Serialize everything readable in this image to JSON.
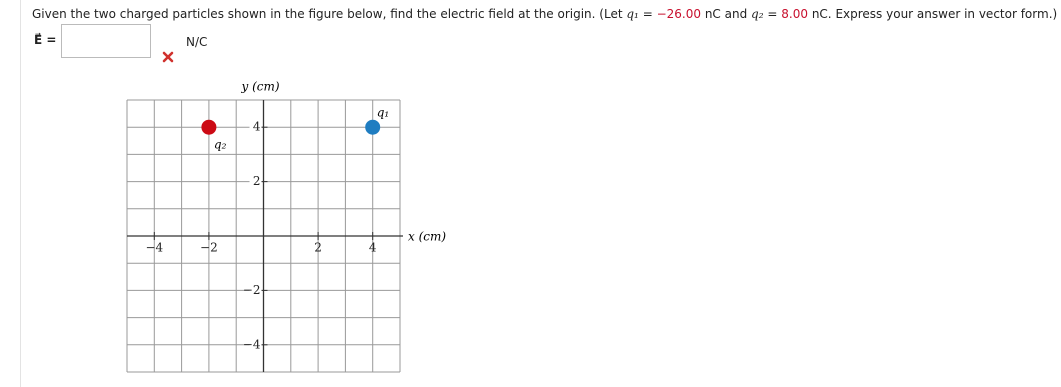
{
  "question": {
    "intro": "Given the two charged particles shown in the figure below, find the electric field at the origin. (Let",
    "q1_symbol": "q₁",
    "equals_1": "=",
    "q1_value": "−26.00",
    "q1_unit": "nC",
    "joiner": "and",
    "q2_symbol": "q₂",
    "equals_2": "=",
    "q2_value": "8.00",
    "q2_unit": "nC.",
    "instruction": "Express your answer in vector form.)"
  },
  "answer": {
    "label": "E⃗ =",
    "unit": "N/C"
  },
  "figure": {
    "x_label": "x (cm)",
    "y_label": "y (cm)",
    "xlim": [
      -5,
      5
    ],
    "ylim": [
      -5,
      5
    ],
    "xticks": [
      {
        "value": -4,
        "label": "−4"
      },
      {
        "value": -2,
        "label": "−2"
      },
      2,
      4
    ],
    "yticks": [
      4,
      2,
      {
        "value": -2,
        "label": "−2"
      },
      {
        "value": -4,
        "label": "−4"
      }
    ],
    "charges": [
      {
        "label": "q₁",
        "x": 4,
        "y": 4,
        "color": "#1f7dc1"
      },
      {
        "label": "q₂",
        "x": -2,
        "y": 4,
        "color": "#cc0a14"
      }
    ]
  }
}
